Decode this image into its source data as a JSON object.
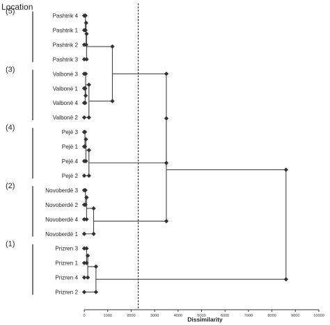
{
  "chart_data": {
    "type": "dendrogram",
    "title": "Location",
    "xlabel": "Dissimilarity",
    "xlim": [
      0,
      10000
    ],
    "xticks": [
      0,
      1000,
      2000,
      3000,
      4000,
      5000,
      6000,
      7000,
      8000,
      9000,
      10000
    ],
    "threshold": 2300,
    "grid": false,
    "leaves": [
      "Pashtrik 4",
      "Pashtrik 1",
      "Pashtrik 2",
      "Pashtrik 3",
      "Valbonë 3",
      "Valbonë 1",
      "Valbonë 4",
      "Valbonë 2",
      "Pejë 3",
      "Pejë 1",
      "Pejë 4",
      "Pejë 2",
      "Novoberdë 3",
      "Novoberdë 2",
      "Novoberdë 4",
      "Novoberdë 1",
      "Prizren 3",
      "Prizren 1",
      "Prizren 4",
      "Prizren 2"
    ],
    "groups": [
      {
        "label": "(5)",
        "leaves": [
          0,
          3
        ]
      },
      {
        "label": "(3)",
        "leaves": [
          4,
          7
        ]
      },
      {
        "label": "(4)",
        "leaves": [
          8,
          11
        ]
      },
      {
        "label": "(2)",
        "leaves": [
          12,
          15
        ]
      },
      {
        "label": "(1)",
        "leaves": [
          16,
          19
        ]
      }
    ],
    "merges": [
      {
        "a": "L0",
        "b": "L1",
        "height": 50
      },
      {
        "a": "M0",
        "b": "L2",
        "height": 80
      },
      {
        "a": "M1",
        "b": "L3",
        "height": 100
      },
      {
        "a": "L5",
        "b": "L6",
        "height": 40
      },
      {
        "a": "L4",
        "b": "M3",
        "height": 60
      },
      {
        "a": "M4",
        "b": "L7",
        "height": 200
      },
      {
        "a": "M2",
        "b": "M5",
        "height": 1200
      },
      {
        "a": "L8",
        "b": "L9",
        "height": 30
      },
      {
        "a": "M7",
        "b": "L10",
        "height": 70
      },
      {
        "a": "M8",
        "b": "L11",
        "height": 200
      },
      {
        "a": "M9",
        "b": "M6",
        "height": 3500
      },
      {
        "a": "L12",
        "b": "L13",
        "height": 50
      },
      {
        "a": "M11",
        "b": "L14",
        "height": 100
      },
      {
        "a": "M12",
        "b": "L15",
        "height": 400
      },
      {
        "a": "M10",
        "b": "M13",
        "height": 3500
      },
      {
        "a": "L16",
        "b": "L17",
        "height": 100
      },
      {
        "a": "M15",
        "b": "L18",
        "height": 150
      },
      {
        "a": "M16",
        "b": "L19",
        "height": 500
      },
      {
        "a": "M14",
        "b": "M17",
        "height": 8600
      }
    ]
  }
}
